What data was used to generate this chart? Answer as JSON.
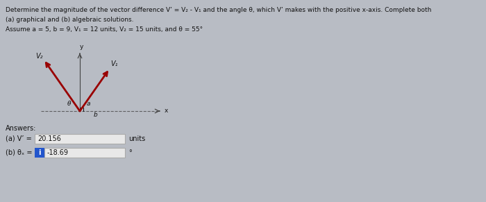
{
  "bg_color": "#b8bcc4",
  "title_line1": "Determine the magnitude of the vector difference V’ = V₂ - V₁ and the angle θ, which V’ makes with the positive x-axis. Complete both",
  "title_line2": "(a) graphical and (b) algebraic solutions.",
  "title_line3": "Assume a = 5, b = 9, V₁ = 12 units, V₂ = 15 units, and θ = 55°",
  "answers_label": "Answers:",
  "answer_a_label": "(a) V’ =",
  "answer_a_value": "20.156",
  "answer_a_units": "units",
  "answer_b_label": "(b) θₓ =",
  "answer_b_value": "-18.69",
  "answer_b_units": "°",
  "box_facecolor": "#e8e8e8",
  "box_edgecolor": "#aaaaaa",
  "blue_box_color": "#2255cc",
  "v_color": "#990000",
  "axis_color": "#444444",
  "dash_color": "#555555",
  "text_color": "#111111",
  "V1_label": "V₁",
  "V2_label": "V₂",
  "theta_label": "θ",
  "a_label": "a",
  "b_label": "b",
  "y_label": "y",
  "x_label": "x",
  "fontsize_title": 6.5,
  "fontsize_diagram": 6.5,
  "fontsize_answer": 7.0
}
